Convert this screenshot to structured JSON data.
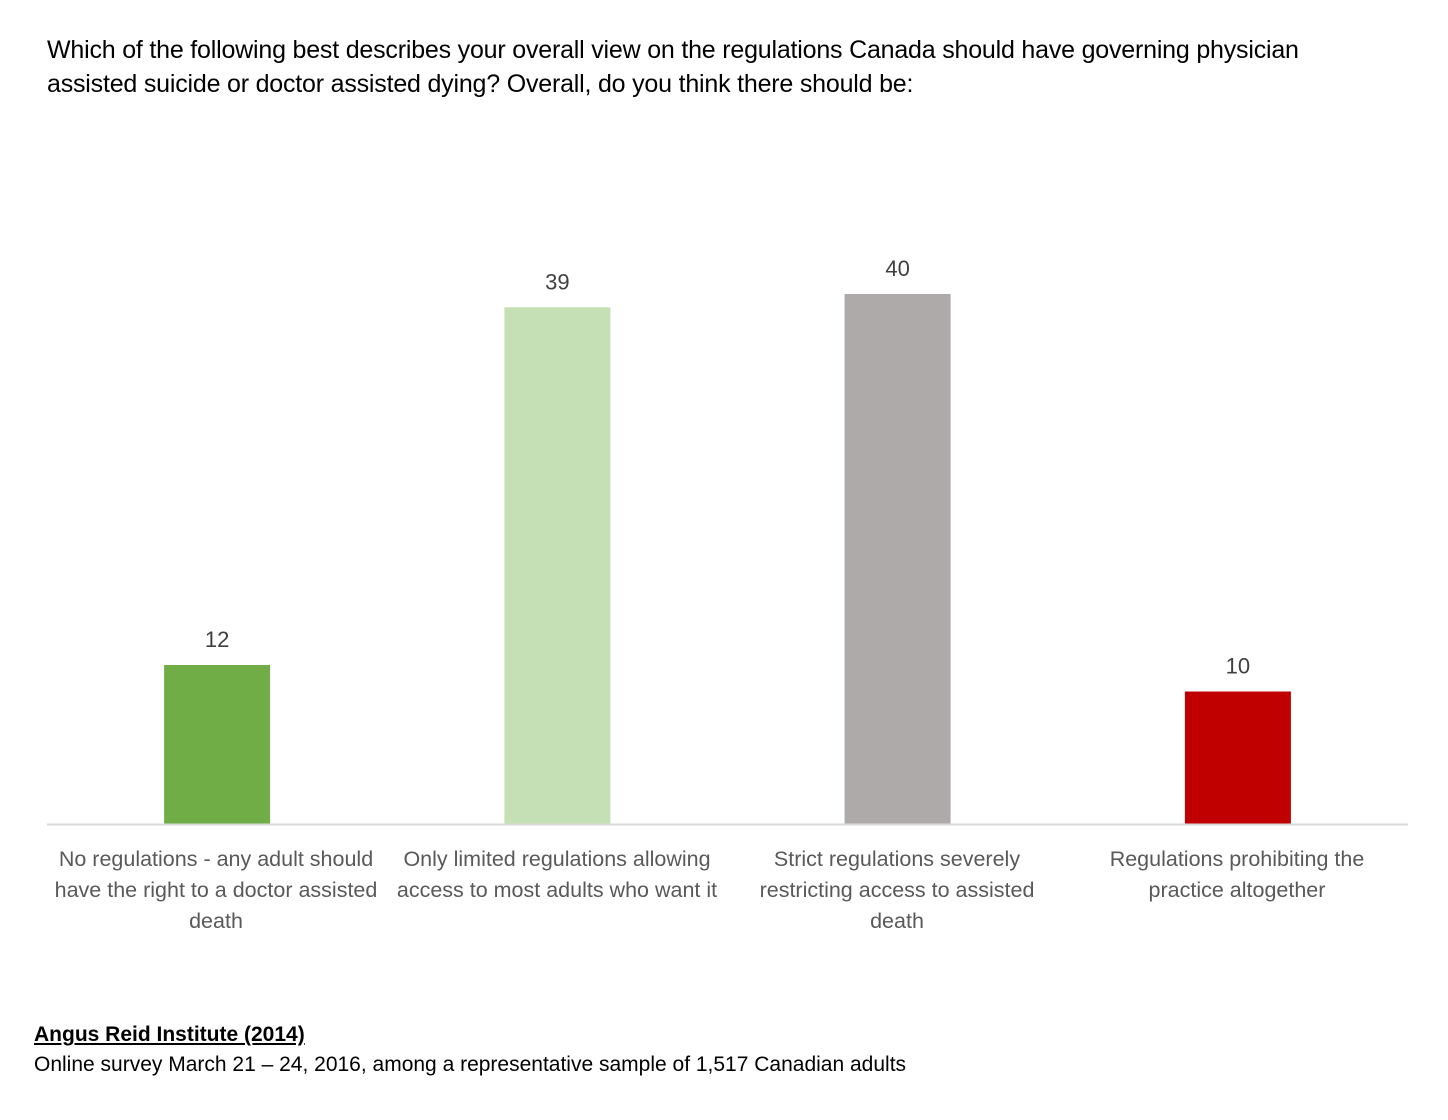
{
  "title": "Which of the following best describes your overall view on the regulations Canada should have governing physician assisted suicide or doctor assisted dying? Overall, do you think there should be:",
  "footer": {
    "source": "Angus Reid Institute (2014)",
    "note": "Online survey March 21 – 24, 2016, among a representative sample of 1,517 Canadian adults"
  },
  "chart_data": {
    "type": "bar",
    "title": "Which of the following best describes your overall view on the regulations Canada should have governing physician assisted suicide or doctor assisted dying? Overall, do you think there should be:",
    "categories": [
      "No regulations - any adult should have the right to a doctor assisted death",
      "Only limited regulations allowing access to most adults who want it",
      "Strict regulations severely restricting access to assisted death",
      "Regulations prohibiting the practice altogether"
    ],
    "values": [
      12,
      39,
      40,
      10
    ],
    "value_labels": [
      "12",
      "39",
      "40",
      "10"
    ],
    "colors": [
      "#70AD47",
      "#C5E0B4",
      "#AEAAAA",
      "#C00000"
    ],
    "xlabel": "",
    "ylabel": "",
    "ylim": [
      0,
      40
    ],
    "grid": false,
    "legend": "none"
  }
}
